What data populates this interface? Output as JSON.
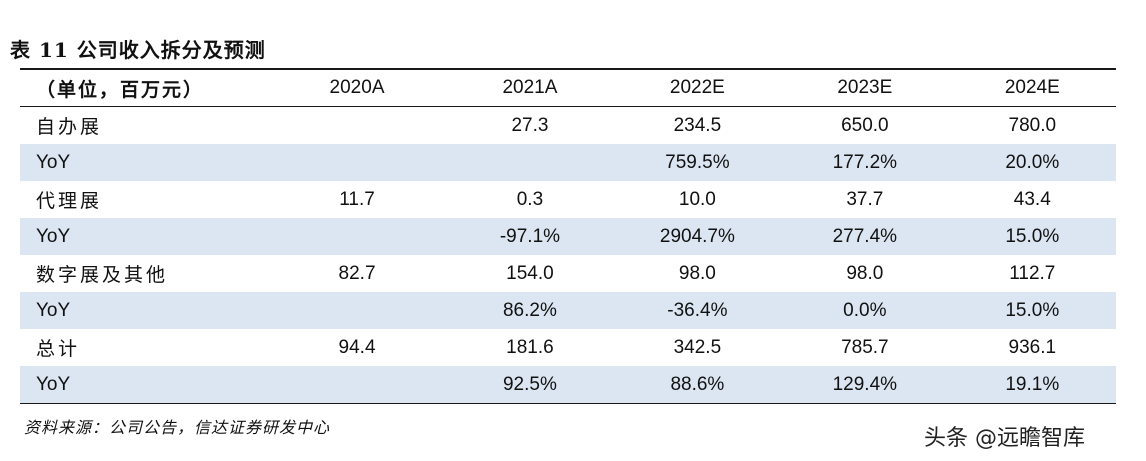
{
  "title": "表 11  公司收入拆分及预测",
  "header": {
    "label": "（单位，百万元）",
    "columns": [
      "2020A",
      "2021A",
      "2022E",
      "2023E",
      "2024E"
    ]
  },
  "rows": [
    {
      "label": "自办展",
      "values": [
        "",
        "27.3",
        "234.5",
        "650.0",
        "780.0"
      ]
    },
    {
      "label": "YoY",
      "values": [
        "",
        "",
        "759.5%",
        "177.2%",
        "20.0%"
      ]
    },
    {
      "label": "代理展",
      "values": [
        "11.7",
        "0.3",
        "10.0",
        "37.7",
        "43.4"
      ]
    },
    {
      "label": "YoY",
      "values": [
        "",
        "-97.1%",
        "2904.7%",
        "277.4%",
        "15.0%"
      ]
    },
    {
      "label": "数字展及其他",
      "values": [
        "82.7",
        "154.0",
        "98.0",
        "98.0",
        "112.7"
      ]
    },
    {
      "label": "YoY",
      "values": [
        "",
        "86.2%",
        "-36.4%",
        "0.0%",
        "15.0%"
      ]
    },
    {
      "label": "总计",
      "values": [
        "94.4",
        "181.6",
        "342.5",
        "785.7",
        "936.1"
      ]
    },
    {
      "label": "YoY",
      "values": [
        "",
        "92.5%",
        "88.6%",
        "129.4%",
        "19.1%"
      ]
    }
  ],
  "source": "资料来源：公司公告，信达证券研发中心",
  "watermark": "头条 @远瞻智库"
}
